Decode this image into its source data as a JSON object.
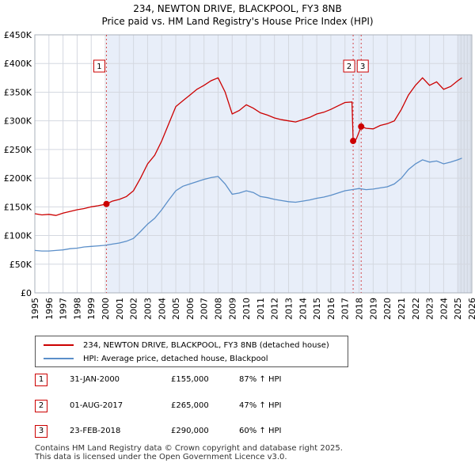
{
  "chart_data": {
    "type": "line",
    "title": "234, NEWTON DRIVE, BLACKPOOL, FY3 8NB",
    "subtitle": "Price paid vs. HM Land Registry's House Price Index (HPI)",
    "x_range": [
      1995,
      2026
    ],
    "ylim": [
      0,
      450000
    ],
    "y_ticks": [
      {
        "value": 0,
        "label": "£0"
      },
      {
        "value": 50000,
        "label": "£50K"
      },
      {
        "value": 100000,
        "label": "£100K"
      },
      {
        "value": 150000,
        "label": "£150K"
      },
      {
        "value": 200000,
        "label": "£200K"
      },
      {
        "value": 250000,
        "label": "£250K"
      },
      {
        "value": 300000,
        "label": "£300K"
      },
      {
        "value": 350000,
        "label": "£350K"
      },
      {
        "value": 400000,
        "label": "£400K"
      },
      {
        "value": 450000,
        "label": "£450K"
      }
    ],
    "x_ticks": [
      "1995",
      "1996",
      "1997",
      "1998",
      "1999",
      "2000",
      "2001",
      "2002",
      "2003",
      "2004",
      "2005",
      "2006",
      "2007",
      "2008",
      "2009",
      "2010",
      "2011",
      "2012",
      "2013",
      "2014",
      "2015",
      "2016",
      "2017",
      "2018",
      "2019",
      "2020",
      "2021",
      "2022",
      "2023",
      "2024",
      "2025",
      "2026"
    ],
    "series": [
      {
        "name": "234, NEWTON DRIVE, BLACKPOOL, FY3 8NB (detached house)",
        "color": "#cc0000",
        "points": [
          [
            1995.0,
            138000
          ],
          [
            1995.5,
            136000
          ],
          [
            1996.0,
            137000
          ],
          [
            1996.5,
            135000
          ],
          [
            1997.0,
            139000
          ],
          [
            1997.5,
            142000
          ],
          [
            1998.0,
            145000
          ],
          [
            1998.5,
            147000
          ],
          [
            1999.0,
            150000
          ],
          [
            1999.5,
            152000
          ],
          [
            2000.08,
            155000
          ],
          [
            2000.5,
            160000
          ],
          [
            2001.0,
            163000
          ],
          [
            2001.5,
            168000
          ],
          [
            2002.0,
            178000
          ],
          [
            2002.5,
            200000
          ],
          [
            2003.0,
            225000
          ],
          [
            2003.5,
            240000
          ],
          [
            2004.0,
            265000
          ],
          [
            2004.5,
            295000
          ],
          [
            2005.0,
            325000
          ],
          [
            2005.5,
            335000
          ],
          [
            2006.0,
            345000
          ],
          [
            2006.5,
            355000
          ],
          [
            2007.0,
            362000
          ],
          [
            2007.5,
            370000
          ],
          [
            2008.0,
            375000
          ],
          [
            2008.5,
            350000
          ],
          [
            2009.0,
            312000
          ],
          [
            2009.5,
            318000
          ],
          [
            2010.0,
            328000
          ],
          [
            2010.5,
            322000
          ],
          [
            2011.0,
            314000
          ],
          [
            2011.5,
            310000
          ],
          [
            2012.0,
            305000
          ],
          [
            2012.5,
            302000
          ],
          [
            2013.0,
            300000
          ],
          [
            2013.5,
            298000
          ],
          [
            2014.0,
            302000
          ],
          [
            2014.5,
            306000
          ],
          [
            2015.0,
            312000
          ],
          [
            2015.5,
            315000
          ],
          [
            2016.0,
            320000
          ],
          [
            2016.5,
            326000
          ],
          [
            2017.0,
            332000
          ],
          [
            2017.5,
            333000
          ],
          [
            2017.58,
            265000
          ],
          [
            2017.8,
            268000
          ],
          [
            2018.15,
            290000
          ],
          [
            2018.5,
            287000
          ],
          [
            2019.0,
            286000
          ],
          [
            2019.5,
            292000
          ],
          [
            2020.0,
            295000
          ],
          [
            2020.5,
            300000
          ],
          [
            2021.0,
            320000
          ],
          [
            2021.5,
            345000
          ],
          [
            2022.0,
            362000
          ],
          [
            2022.5,
            375000
          ],
          [
            2023.0,
            362000
          ],
          [
            2023.5,
            368000
          ],
          [
            2024.0,
            355000
          ],
          [
            2024.5,
            360000
          ],
          [
            2025.0,
            370000
          ],
          [
            2025.3,
            375000
          ]
        ]
      },
      {
        "name": "HPI: Average price, detached house, Blackpool",
        "color": "#5b8fc9",
        "points": [
          [
            1995.0,
            74000
          ],
          [
            1995.5,
            73000
          ],
          [
            1996.0,
            73000
          ],
          [
            1996.5,
            74000
          ],
          [
            1997.0,
            75000
          ],
          [
            1997.5,
            77000
          ],
          [
            1998.0,
            78000
          ],
          [
            1998.5,
            80000
          ],
          [
            1999.0,
            81000
          ],
          [
            1999.5,
            82000
          ],
          [
            2000.0,
            83000
          ],
          [
            2000.5,
            85000
          ],
          [
            2001.0,
            87000
          ],
          [
            2001.5,
            90000
          ],
          [
            2002.0,
            95000
          ],
          [
            2002.5,
            107000
          ],
          [
            2003.0,
            120000
          ],
          [
            2003.5,
            130000
          ],
          [
            2004.0,
            145000
          ],
          [
            2004.5,
            162000
          ],
          [
            2005.0,
            178000
          ],
          [
            2005.5,
            186000
          ],
          [
            2006.0,
            190000
          ],
          [
            2006.5,
            194000
          ],
          [
            2007.0,
            198000
          ],
          [
            2007.5,
            201000
          ],
          [
            2008.0,
            203000
          ],
          [
            2008.5,
            190000
          ],
          [
            2009.0,
            172000
          ],
          [
            2009.5,
            174000
          ],
          [
            2010.0,
            178000
          ],
          [
            2010.5,
            175000
          ],
          [
            2011.0,
            168000
          ],
          [
            2011.5,
            166000
          ],
          [
            2012.0,
            163000
          ],
          [
            2012.5,
            161000
          ],
          [
            2013.0,
            159000
          ],
          [
            2013.5,
            158000
          ],
          [
            2014.0,
            160000
          ],
          [
            2014.5,
            162000
          ],
          [
            2015.0,
            165000
          ],
          [
            2015.5,
            167000
          ],
          [
            2016.0,
            170000
          ],
          [
            2016.5,
            174000
          ],
          [
            2017.0,
            178000
          ],
          [
            2017.5,
            180000
          ],
          [
            2018.0,
            182000
          ],
          [
            2018.5,
            180000
          ],
          [
            2019.0,
            181000
          ],
          [
            2019.5,
            183000
          ],
          [
            2020.0,
            185000
          ],
          [
            2020.5,
            190000
          ],
          [
            2021.0,
            200000
          ],
          [
            2021.5,
            215000
          ],
          [
            2022.0,
            225000
          ],
          [
            2022.5,
            232000
          ],
          [
            2023.0,
            228000
          ],
          [
            2023.5,
            230000
          ],
          [
            2024.0,
            225000
          ],
          [
            2024.5,
            228000
          ],
          [
            2025.0,
            232000
          ],
          [
            2025.3,
            235000
          ]
        ]
      }
    ],
    "annotations": [
      {
        "label": "1",
        "x": 2000.08,
        "y": 155000
      },
      {
        "label": "2",
        "x": 2017.58,
        "y": 265000
      },
      {
        "label": "3",
        "x": 2018.15,
        "y": 290000
      }
    ],
    "shaded_ranges": [
      [
        2000.08,
        2026
      ],
      [
        2025.0,
        2026
      ]
    ],
    "grid": true
  },
  "legend": {
    "items": [
      {
        "label": "234, NEWTON DRIVE, BLACKPOOL, FY3 8NB (detached house)",
        "color": "#cc0000"
      },
      {
        "label": "HPI: Average price, detached house, Blackpool",
        "color": "#5b8fc9"
      }
    ]
  },
  "sales": [
    {
      "num": "1",
      "date": "31-JAN-2000",
      "price": "£155,000",
      "hpi": "87% ↑ HPI"
    },
    {
      "num": "2",
      "date": "01-AUG-2017",
      "price": "£265,000",
      "hpi": "47% ↑ HPI"
    },
    {
      "num": "3",
      "date": "23-FEB-2018",
      "price": "£290,000",
      "hpi": "60% ↑ HPI"
    }
  ],
  "footer": {
    "line1": "Contains HM Land Registry data © Crown copyright and database right 2025.",
    "line2": "This data is licensed under the Open Government Licence v3.0."
  }
}
